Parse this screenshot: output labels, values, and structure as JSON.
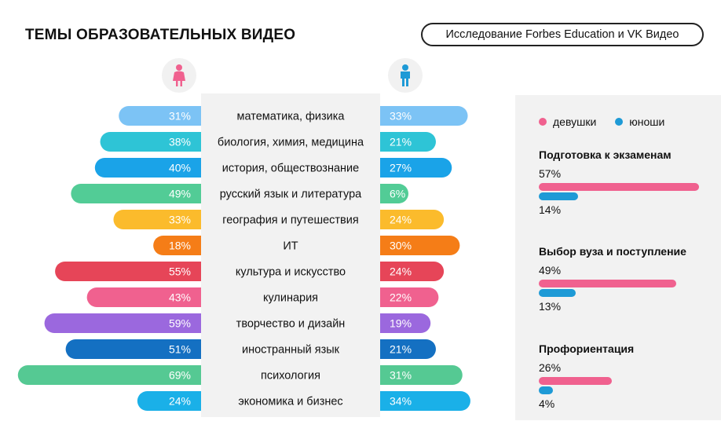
{
  "header": {
    "title": "ТЕМЫ ОБРАЗОВАТЕЛЬНЫХ ВИДЕО",
    "source": "Исследование Forbes Education и VK Видео"
  },
  "icons": {
    "left": "female-icon",
    "right": "male-icon",
    "left_color": "#f0618f",
    "right_color": "#1e9ad6"
  },
  "chart_data": [
    {
      "type": "bar",
      "layout": "butterfly",
      "categories": [
        "математика, физика",
        "биология, химия, медицина",
        "история, обществознание",
        "русский язык и литература",
        "география и путешествия",
        "ИТ",
        "культура и искусство",
        "кулинария",
        "творчество и дизайн",
        "иностранный язык",
        "психология",
        "экономика и бизнес"
      ],
      "series": [
        {
          "values": [
            31,
            38,
            40,
            49,
            33,
            18,
            55,
            43,
            59,
            51,
            69,
            24
          ]
        },
        {
          "values": [
            33,
            21,
            27,
            6,
            24,
            30,
            24,
            22,
            19,
            21,
            31,
            34
          ]
        }
      ],
      "colors": [
        "#7cc3f5",
        "#2ec4d6",
        "#1aa3e8",
        "#52cc96",
        "#fbbb2c",
        "#f57d17",
        "#e64558",
        "#f0618f",
        "#9b68de",
        "#1470c2",
        "#55c993",
        "#1ab0e8"
      ],
      "value_suffix": "%"
    },
    {
      "type": "bar",
      "legend": [
        "девушки",
        "юноши"
      ],
      "legend_colors": [
        "#f0618f",
        "#1e9ad6"
      ],
      "categories": [
        "Подготовка к экзаменам",
        "Выбор вуза и поступление",
        "Профориентация"
      ],
      "series": [
        {
          "name": "девушки",
          "values": [
            57,
            49,
            26
          ]
        },
        {
          "name": "юноши",
          "values": [
            14,
            13,
            4
          ]
        }
      ],
      "value_suffix": "%"
    }
  ]
}
